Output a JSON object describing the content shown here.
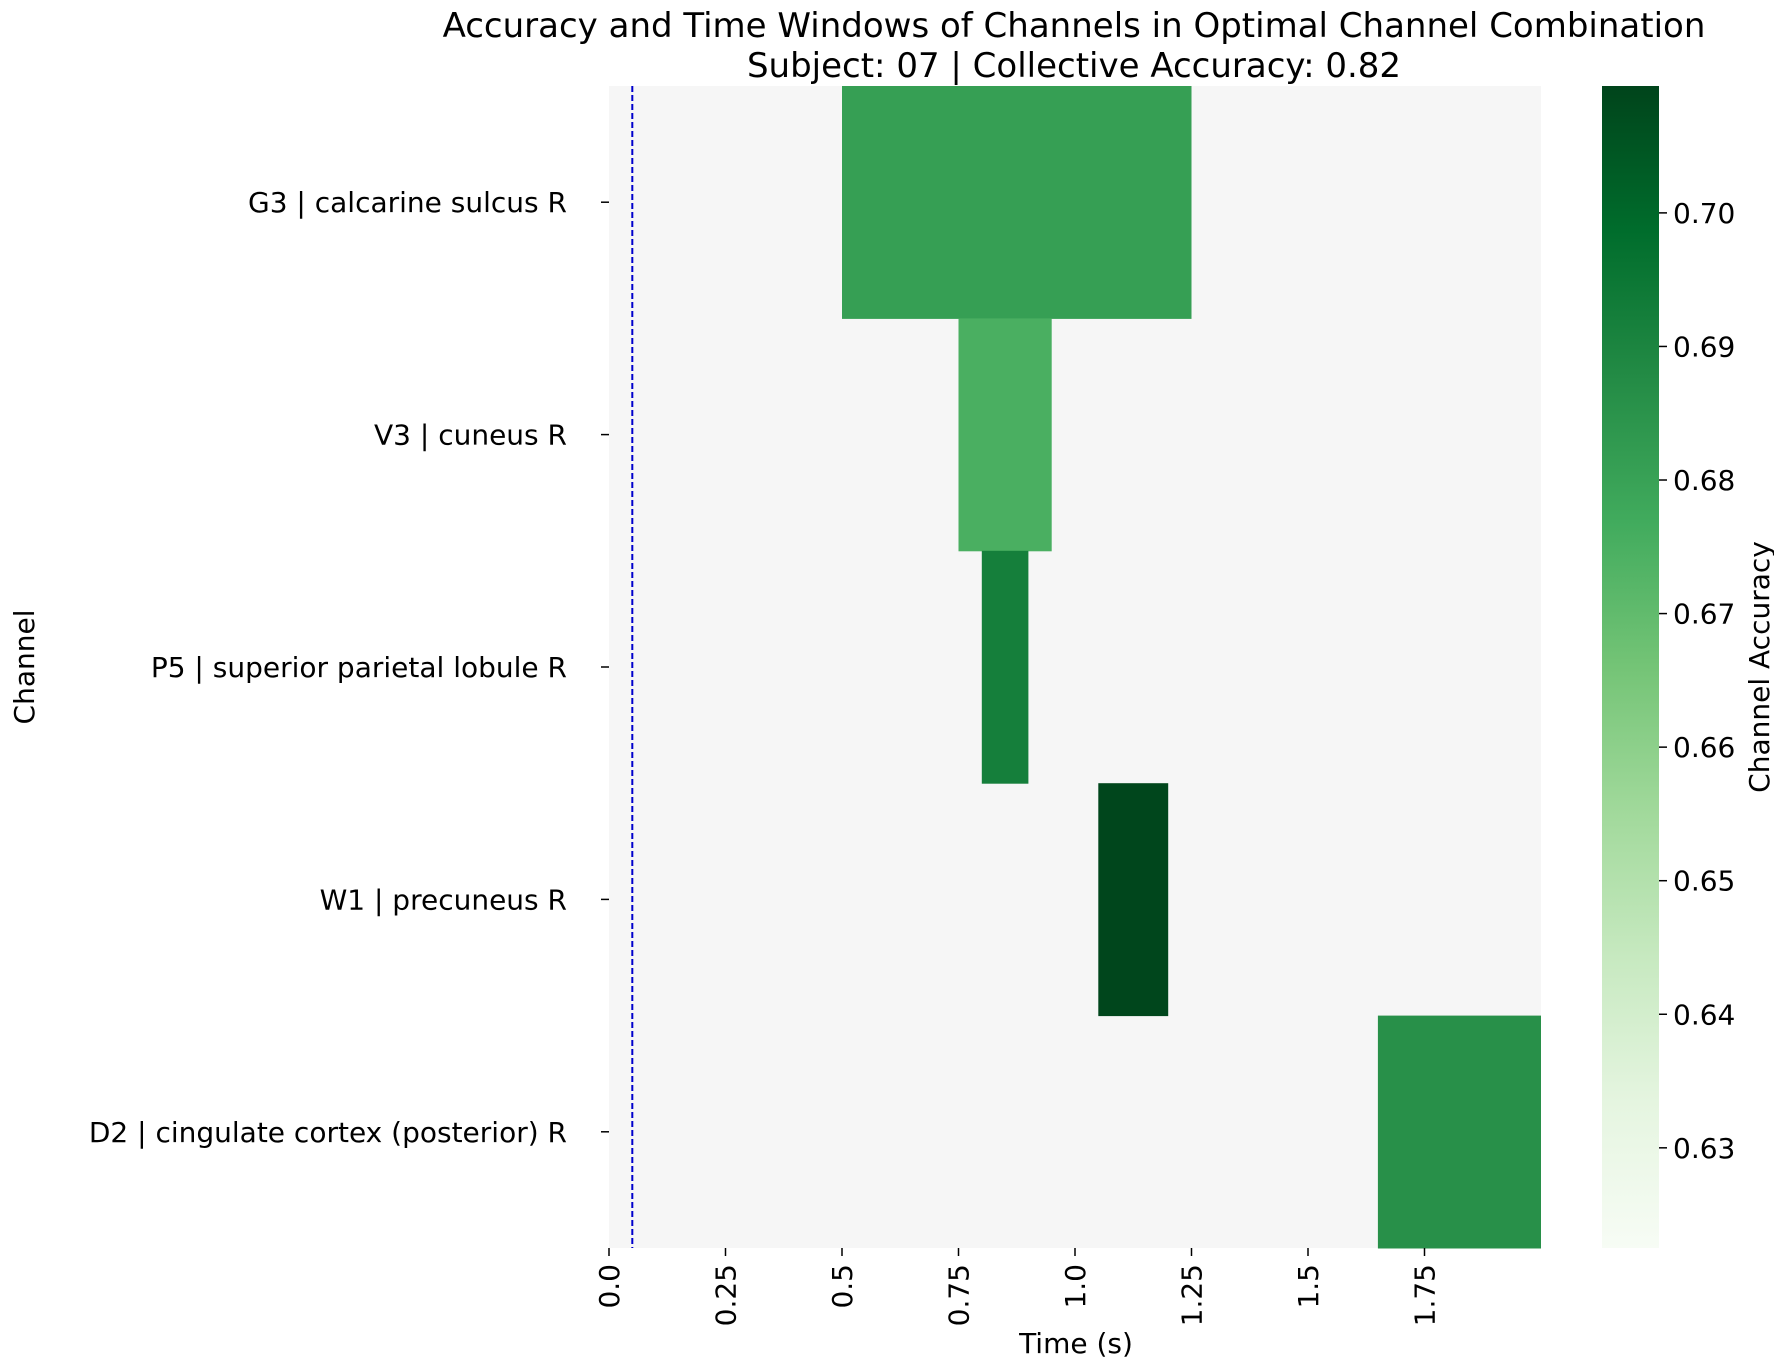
{
  "chart_data": {
    "type": "heatmap",
    "title": "Accuracy and Time Windows of Channels in Optimal Channel Combination",
    "subtitle": "Subject: 07 | Collective Accuracy: 0.82",
    "xlabel": "Time (s)",
    "ylabel": "Channel",
    "xlim": [
      0.0,
      2.0
    ],
    "x_tick_labels": [
      "0.0",
      "0.25",
      "0.5",
      "0.75",
      "1.0",
      "1.25",
      "1.5",
      "1.75"
    ],
    "x_ticks": [
      0.0,
      0.25,
      0.5,
      0.75,
      1.0,
      1.25,
      1.5,
      1.75
    ],
    "x_tick_rotation": "vertical",
    "channels": [
      "G3 | calcarine sulcus R",
      "V3 | cuneus R",
      "P5 | superior parietal lobule R",
      "W1 | precuneus R",
      "D2 | cingulate cortex (posterior) R"
    ],
    "windows": [
      {
        "channel": "G3 | calcarine sulcus R",
        "start": 0.5,
        "end": 1.25,
        "accuracy": 0.681
      },
      {
        "channel": "V3 | cuneus R",
        "start": 0.75,
        "end": 0.95,
        "accuracy": 0.675
      },
      {
        "channel": "P5 | superior parietal lobule R",
        "start": 0.8,
        "end": 0.9,
        "accuracy": 0.692
      },
      {
        "channel": "W1 | precuneus R",
        "start": 1.05,
        "end": 1.2,
        "accuracy": 0.709
      },
      {
        "channel": "D2 | cingulate cortex (posterior) R",
        "start": 1.65,
        "end": 2.0,
        "accuracy": 0.686
      }
    ],
    "reference_line": {
      "x": 0.05,
      "style": "dashed",
      "color": "#0000cc"
    },
    "colorbar": {
      "label": "Channel Accuracy",
      "colormap": "Greens",
      "range": [
        0.6225,
        0.7095
      ],
      "ticks": [
        0.63,
        0.64,
        0.65,
        0.66,
        0.67,
        0.68,
        0.69,
        0.7
      ],
      "tick_labels": [
        "0.63",
        "0.64",
        "0.65",
        "0.66",
        "0.67",
        "0.68",
        "0.69",
        "0.70"
      ]
    },
    "background_color": "#f6f6f6",
    "grid": false
  }
}
